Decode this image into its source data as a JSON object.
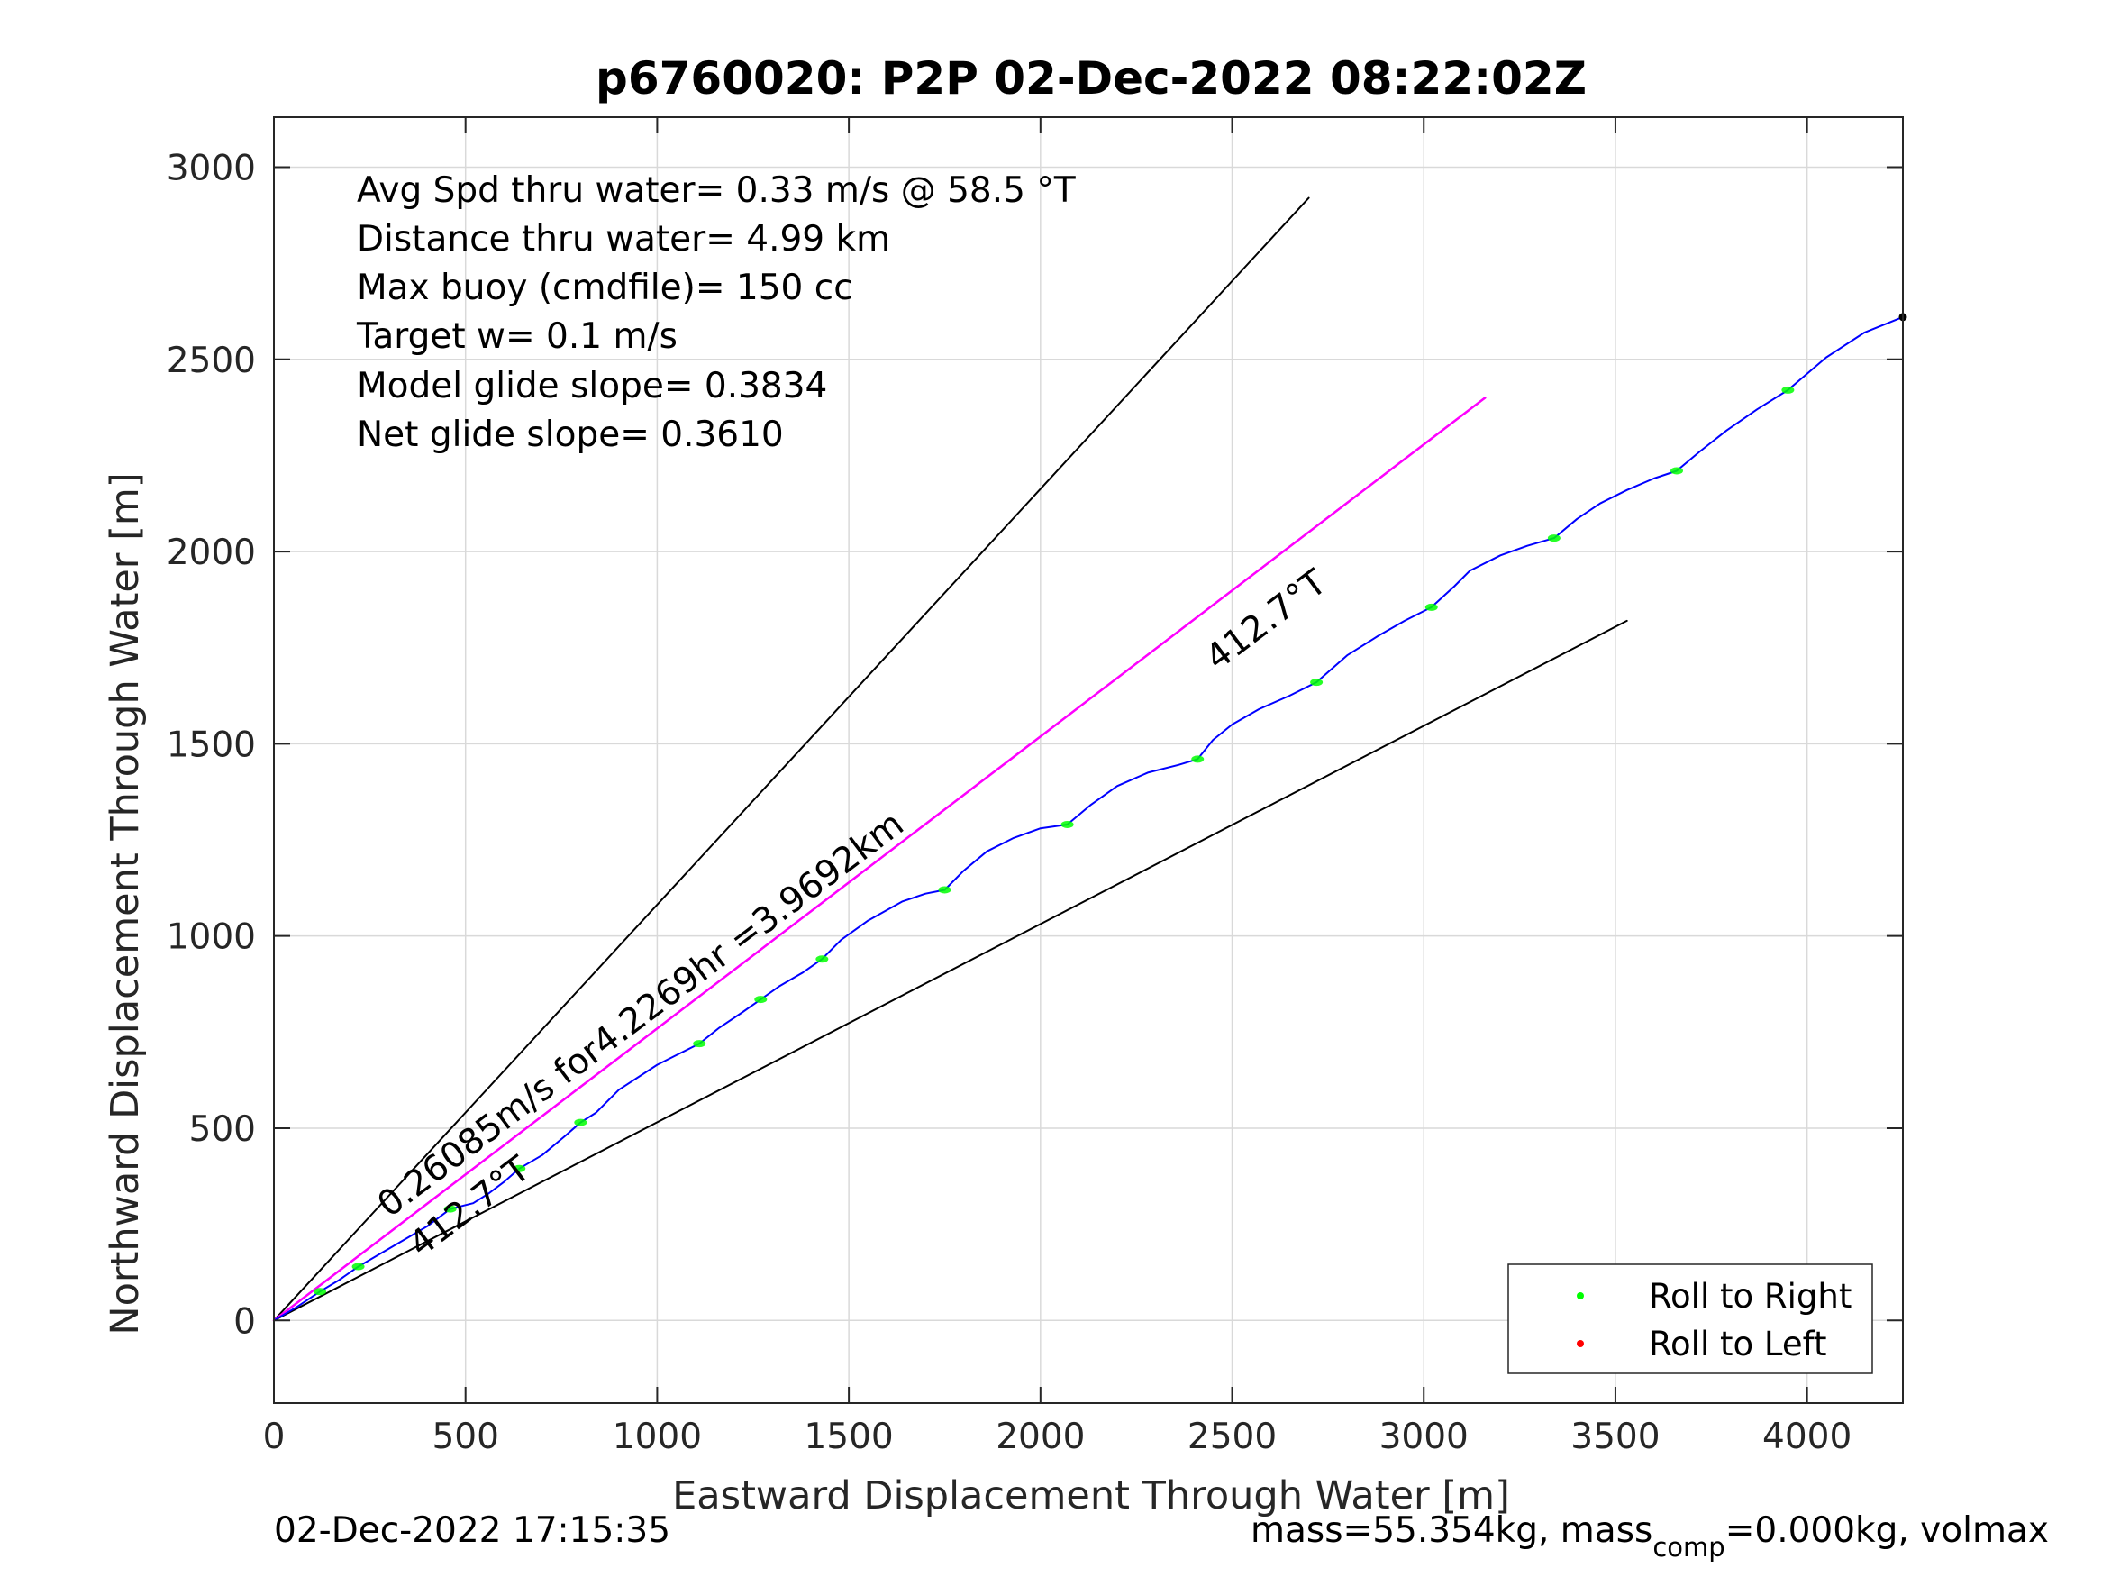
{
  "chart_data": {
    "type": "line",
    "title": "p6760020: P2P 02-Dec-2022 08:22:02Z",
    "xlabel": "Eastward Displacement Through Water [m]",
    "ylabel": "Northward Displacement Through Water [m]",
    "xlim": [
      0,
      4250
    ],
    "ylim": [
      -215,
      3130
    ],
    "x_ticks": [
      0,
      500,
      1000,
      1500,
      2000,
      2500,
      3000,
      3500,
      4000
    ],
    "y_ticks": [
      0,
      500,
      1000,
      1500,
      2000,
      2500,
      3000
    ],
    "grid": true,
    "legend_position": "bottom-right",
    "legend": [
      {
        "label": "Roll to Right",
        "color": "#00ff00"
      },
      {
        "label": "Roll to Left",
        "color": "#ff0000"
      }
    ],
    "info_lines": [
      "Avg Spd thru water=  0.33 m/s @  58.5 °T",
      "Distance thru water=  4.99 km",
      "Max buoy (cmdfile)= 150 cc",
      "Target w= 0.1 m/s",
      "Model glide slope= 0.3834",
      "Net glide slope= 0.3610"
    ],
    "annotations": {
      "drift": "0.26085m/s for4.2269hr =3.9692km",
      "heading_upper": "412.7°T",
      "heading_lower": "412.7°T"
    },
    "footer_left": "02-Dec-2022 17:15:35",
    "footer_right_parts": [
      "mass=55.354kg, mass",
      "comp",
      "=0.000kg, volmax"
    ],
    "colors": {
      "track": "#0000ff",
      "drift_line": "#ff00ff",
      "cone": "#000000",
      "grid": "#d9d9d9"
    },
    "series": [
      {
        "name": "track",
        "color": "#0000ff",
        "points": [
          [
            0,
            0
          ],
          [
            60,
            35
          ],
          [
            120,
            75
          ],
          [
            170,
            105
          ],
          [
            220,
            140
          ],
          [
            280,
            175
          ],
          [
            340,
            210
          ],
          [
            400,
            245
          ],
          [
            460,
            290
          ],
          [
            520,
            305
          ],
          [
            560,
            330
          ],
          [
            600,
            360
          ],
          [
            640,
            395
          ],
          [
            700,
            430
          ],
          [
            760,
            480
          ],
          [
            800,
            515
          ],
          [
            840,
            540
          ],
          [
            900,
            600
          ],
          [
            1000,
            665
          ],
          [
            1050,
            690
          ],
          [
            1110,
            720
          ],
          [
            1160,
            760
          ],
          [
            1220,
            800
          ],
          [
            1270,
            835
          ],
          [
            1320,
            870
          ],
          [
            1380,
            905
          ],
          [
            1430,
            940
          ],
          [
            1480,
            990
          ],
          [
            1550,
            1040
          ],
          [
            1640,
            1090
          ],
          [
            1700,
            1110
          ],
          [
            1750,
            1120
          ],
          [
            1800,
            1170
          ],
          [
            1860,
            1220
          ],
          [
            1930,
            1255
          ],
          [
            2000,
            1280
          ],
          [
            2070,
            1290
          ],
          [
            2130,
            1340
          ],
          [
            2200,
            1390
          ],
          [
            2280,
            1425
          ],
          [
            2360,
            1445
          ],
          [
            2410,
            1460
          ],
          [
            2450,
            1510
          ],
          [
            2500,
            1550
          ],
          [
            2570,
            1590
          ],
          [
            2650,
            1625
          ],
          [
            2720,
            1660
          ],
          [
            2800,
            1730
          ],
          [
            2880,
            1780
          ],
          [
            2950,
            1820
          ],
          [
            3020,
            1855
          ],
          [
            3080,
            1910
          ],
          [
            3120,
            1950
          ],
          [
            3200,
            1990
          ],
          [
            3270,
            2015
          ],
          [
            3340,
            2035
          ],
          [
            3400,
            2085
          ],
          [
            3460,
            2125
          ],
          [
            3530,
            2160
          ],
          [
            3600,
            2190
          ],
          [
            3660,
            2210
          ],
          [
            3720,
            2260
          ],
          [
            3790,
            2315
          ],
          [
            3870,
            2370
          ],
          [
            3950,
            2420
          ],
          [
            4050,
            2505
          ],
          [
            4150,
            2570
          ],
          [
            4250,
            2610
          ]
        ]
      },
      {
        "name": "drift",
        "color": "#ff00ff",
        "points": [
          [
            0,
            0
          ],
          [
            3160,
            2400
          ]
        ]
      },
      {
        "name": "cone-upper",
        "color": "#000000",
        "points": [
          [
            0,
            0
          ],
          [
            2700,
            2920
          ]
        ]
      },
      {
        "name": "cone-mid",
        "color": "#000000",
        "points": [
          [
            0,
            0
          ],
          [
            3160,
            2400
          ]
        ]
      },
      {
        "name": "cone-lower",
        "color": "#000000",
        "points": [
          [
            0,
            0
          ],
          [
            3530,
            1820
          ]
        ]
      }
    ],
    "roll_right_points": [
      [
        120,
        75
      ],
      [
        220,
        140
      ],
      [
        460,
        290
      ],
      [
        640,
        395
      ],
      [
        800,
        515
      ],
      [
        1110,
        720
      ],
      [
        1270,
        835
      ],
      [
        1430,
        940
      ],
      [
        1750,
        1120
      ],
      [
        2070,
        1290
      ],
      [
        2410,
        1460
      ],
      [
        2720,
        1660
      ],
      [
        3020,
        1855
      ],
      [
        3340,
        2035
      ],
      [
        3660,
        2210
      ],
      [
        3950,
        2420
      ]
    ],
    "roll_left_points": [],
    "end_point": [
      4250,
      2610
    ]
  }
}
